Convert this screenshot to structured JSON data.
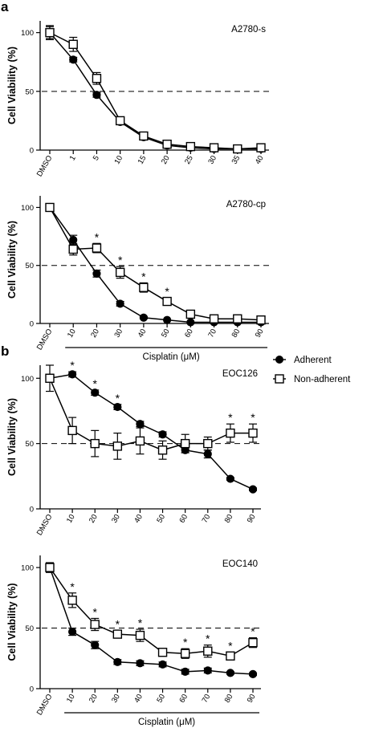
{
  "panel_labels": [
    "a",
    "b"
  ],
  "legend": {
    "items": [
      {
        "label": "Adherent",
        "marker": "filled-circle"
      },
      {
        "label": "Non-adherent",
        "marker": "open-square"
      }
    ]
  },
  "chart_data": [
    {
      "type": "line",
      "panel": "a",
      "title": "A2780-s",
      "ylabel": "Cell Viability (%)",
      "xlabel": "",
      "categories": [
        "DMSO",
        "1",
        "5",
        "10",
        "15",
        "20",
        "25",
        "30",
        "35",
        "40"
      ],
      "yticks": [
        0,
        50,
        100
      ],
      "ylim": [
        0,
        110
      ],
      "reference_line": 50,
      "series": [
        {
          "name": "Adherent",
          "values": [
            100,
            77,
            47,
            24,
            11,
            4,
            2,
            1,
            1,
            1
          ],
          "errors": [
            6,
            2,
            2,
            2,
            1,
            1,
            0.5,
            0.5,
            0.5,
            0.5
          ]
        },
        {
          "name": "Non-adherent",
          "values": [
            100,
            90,
            61,
            25,
            12,
            5,
            3,
            2,
            1,
            2
          ],
          "errors": [
            5,
            6,
            5,
            3,
            2,
            2,
            1,
            1,
            1,
            1
          ]
        }
      ],
      "significance": []
    },
    {
      "type": "line",
      "panel": "a",
      "title": "A2780-cp",
      "ylabel": "Cell Viability (%)",
      "xlabel": "Cisplatin (μM)",
      "categories": [
        "DMSO",
        "10",
        "20",
        "30",
        "40",
        "50",
        "60",
        "70",
        "80",
        "90"
      ],
      "yticks": [
        0,
        50,
        100
      ],
      "ylim": [
        0,
        110
      ],
      "reference_line": 50,
      "series": [
        {
          "name": "Adherent",
          "values": [
            100,
            72,
            43,
            17,
            5,
            3,
            1,
            1,
            1,
            1
          ],
          "errors": [
            1,
            4,
            3,
            2,
            1,
            0.5,
            0.5,
            0.5,
            0.5,
            0.5
          ]
        },
        {
          "name": "Non-adherent",
          "values": [
            100,
            64,
            65,
            44,
            31,
            19,
            8,
            4,
            4,
            3
          ],
          "errors": [
            1,
            5,
            4,
            5,
            4,
            3,
            2,
            2,
            2,
            2
          ]
        }
      ],
      "significance": [
        {
          "category": "20",
          "label": "*"
        },
        {
          "category": "30",
          "label": "*"
        },
        {
          "category": "40",
          "label": "*"
        },
        {
          "category": "50",
          "label": "*"
        }
      ]
    },
    {
      "type": "line",
      "panel": "b",
      "title": "EOC126",
      "ylabel": "Cell Viability (%)",
      "xlabel": "",
      "categories": [
        "DMSO",
        "10",
        "20",
        "30",
        "40",
        "50",
        "60",
        "70",
        "80",
        "90"
      ],
      "yticks": [
        0,
        50,
        100
      ],
      "ylim": [
        0,
        110
      ],
      "reference_line": 50,
      "series": [
        {
          "name": "Adherent",
          "values": [
            100,
            103,
            89,
            78,
            65,
            57,
            45,
            42,
            23,
            15
          ],
          "errors": [
            3,
            2,
            2,
            2,
            2,
            2,
            2,
            3,
            1,
            1
          ]
        },
        {
          "name": "Non-adherent",
          "values": [
            100,
            60,
            50,
            48,
            52,
            45,
            50,
            50,
            58,
            58
          ],
          "errors": [
            10,
            10,
            10,
            10,
            10,
            7,
            7,
            5,
            7,
            7
          ]
        }
      ],
      "significance": [
        {
          "category": "10",
          "label": "*"
        },
        {
          "category": "20",
          "label": "*"
        },
        {
          "category": "30",
          "label": "*"
        },
        {
          "category": "80",
          "label": "*"
        },
        {
          "category": "90",
          "label": "*"
        }
      ]
    },
    {
      "type": "line",
      "panel": "b",
      "title": "EOC140",
      "ylabel": "Cell Viability (%)",
      "xlabel": "Cisplatin (μM)",
      "categories": [
        "DMSO",
        "10",
        "20",
        "30",
        "40",
        "50",
        "60",
        "70",
        "80",
        "90"
      ],
      "yticks": [
        0,
        50,
        100
      ],
      "ylim": [
        0,
        110
      ],
      "reference_line": 50,
      "series": [
        {
          "name": "Adherent",
          "values": [
            100,
            47,
            36,
            22,
            21,
            20,
            14,
            15,
            13,
            12
          ],
          "errors": [
            4,
            3,
            3,
            2,
            2,
            2,
            2,
            2,
            1,
            1
          ]
        },
        {
          "name": "Non-adherent",
          "values": [
            100,
            73,
            53,
            45,
            44,
            30,
            29,
            31,
            27,
            38
          ],
          "errors": [
            4,
            6,
            5,
            3,
            5,
            3,
            4,
            5,
            3,
            4
          ]
        }
      ],
      "significance": [
        {
          "category": "10",
          "label": "*"
        },
        {
          "category": "20",
          "label": "*"
        },
        {
          "category": "30",
          "label": "*"
        },
        {
          "category": "40",
          "label": "*"
        },
        {
          "category": "60",
          "label": "*"
        },
        {
          "category": "70",
          "label": "*"
        },
        {
          "category": "80",
          "label": "*"
        },
        {
          "category": "90",
          "label": "*"
        }
      ]
    }
  ]
}
